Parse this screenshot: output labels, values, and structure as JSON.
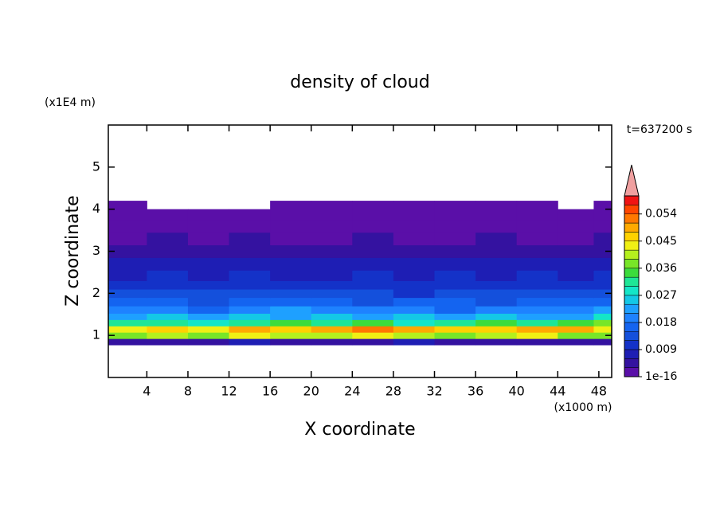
{
  "chart_data": {
    "type": "contour",
    "title": "density of cloud",
    "x_label": "X coordinate",
    "y_label": "Z coordinate",
    "x_unit": "(x1000 m)",
    "y_unit": "(x1E4 m)",
    "annotation": "t=637200 s",
    "xlim": [
      0.25,
      49.25
    ],
    "ylim": [
      0,
      6
    ],
    "xticks": [
      4,
      8,
      12,
      16,
      20,
      24,
      28,
      32,
      36,
      40,
      44,
      48
    ],
    "yticks": [
      1,
      2,
      3,
      4,
      5
    ],
    "x": [
      2,
      6,
      10,
      14,
      18,
      22,
      26,
      30,
      34,
      38,
      42,
      46,
      49
    ],
    "y": [
      0.85,
      1.0,
      1.15,
      1.3,
      1.45,
      1.6,
      1.8,
      2.0,
      2.2,
      2.4,
      2.7,
      3.0,
      3.3,
      3.6,
      3.9,
      4.1
    ],
    "z": [
      [
        0.004,
        0.005,
        0.003,
        0.006,
        0.004,
        0.005,
        0.004,
        0.006,
        0.005,
        0.004,
        0.003,
        0.005,
        0.004
      ],
      [
        0.036,
        0.04,
        0.038,
        0.042,
        0.039,
        0.041,
        0.043,
        0.04,
        0.037,
        0.039,
        0.042,
        0.038,
        0.036
      ],
      [
        0.042,
        0.046,
        0.044,
        0.048,
        0.047,
        0.05,
        0.052,
        0.049,
        0.045,
        0.047,
        0.05,
        0.048,
        0.044
      ],
      [
        0.03,
        0.032,
        0.028,
        0.031,
        0.034,
        0.03,
        0.033,
        0.029,
        0.032,
        0.035,
        0.031,
        0.033,
        0.036
      ],
      [
        0.022,
        0.024,
        0.021,
        0.025,
        0.023,
        0.026,
        0.022,
        0.024,
        0.021,
        0.025,
        0.023,
        0.022,
        0.027
      ],
      [
        0.018,
        0.02,
        0.017,
        0.019,
        0.021,
        0.018,
        0.02,
        0.019,
        0.017,
        0.02,
        0.018,
        0.019,
        0.021
      ],
      [
        0.015,
        0.016,
        0.014,
        0.017,
        0.015,
        0.016,
        0.014,
        0.015,
        0.016,
        0.014,
        0.015,
        0.016,
        0.017
      ],
      [
        0.012,
        0.013,
        0.012,
        0.014,
        0.012,
        0.013,
        0.012,
        0.011,
        0.013,
        0.012,
        0.013,
        0.012,
        0.013
      ],
      [
        0.01,
        0.011,
        0.01,
        0.011,
        0.01,
        0.01,
        0.011,
        0.01,
        0.011,
        0.01,
        0.01,
        0.011,
        0.01
      ],
      [
        0.008,
        0.009,
        0.008,
        0.009,
        0.008,
        0.008,
        0.009,
        0.008,
        0.009,
        0.008,
        0.009,
        0.008,
        0.009
      ],
      [
        0.006,
        0.007,
        0.006,
        0.007,
        0.006,
        0.007,
        0.006,
        0.007,
        0.006,
        0.006,
        0.007,
        0.006,
        0.007
      ],
      [
        0.004,
        0.005,
        0.004,
        0.005,
        0.005,
        0.004,
        0.005,
        0.004,
        0.005,
        0.004,
        0.004,
        0.005,
        0.004
      ],
      [
        0.002,
        0.003,
        0.002,
        0.003,
        0.002,
        0.002,
        0.003,
        0.002,
        0.002,
        0.003,
        0.002,
        0.002,
        0.003
      ],
      [
        0.001,
        0.001,
        0.001,
        0.001,
        0.001,
        0.001,
        0.001,
        0.001,
        0.001,
        0.001,
        0.001,
        0.001,
        0.001
      ],
      [
        0.001,
        0.001,
        0.001,
        0.001,
        0.001,
        0.001,
        0.001,
        0.001,
        0.001,
        0.001,
        0.001,
        0.001,
        0.001
      ],
      [
        0.001,
        null,
        null,
        null,
        0.001,
        0.001,
        0.001,
        0.001,
        0.001,
        0.001,
        0.001,
        null,
        0.001
      ]
    ],
    "levels": [
      1e-16,
      0.003,
      0.006,
      0.009,
      0.012,
      0.015,
      0.018,
      0.021,
      0.024,
      0.027,
      0.03,
      0.033,
      0.036,
      0.039,
      0.042,
      0.045,
      0.048,
      0.051,
      0.054,
      0.057,
      0.06
    ],
    "colors": [
      "#5a0fa8",
      "#3412a0",
      "#1e1eb4",
      "#1432c8",
      "#1450dc",
      "#1464f0",
      "#1e82ff",
      "#1ea0ff",
      "#14c8e6",
      "#14e6c8",
      "#1ee696",
      "#3cdc3c",
      "#78e628",
      "#b4f01e",
      "#f0f014",
      "#ffd200",
      "#ffaa00",
      "#ff7800",
      "#ff4600",
      "#f01414"
    ],
    "extend_color": "#f0a0a0",
    "colorbar_ticks": [
      1e-16,
      0.009,
      0.018,
      0.027,
      0.036,
      0.045,
      0.054
    ]
  }
}
